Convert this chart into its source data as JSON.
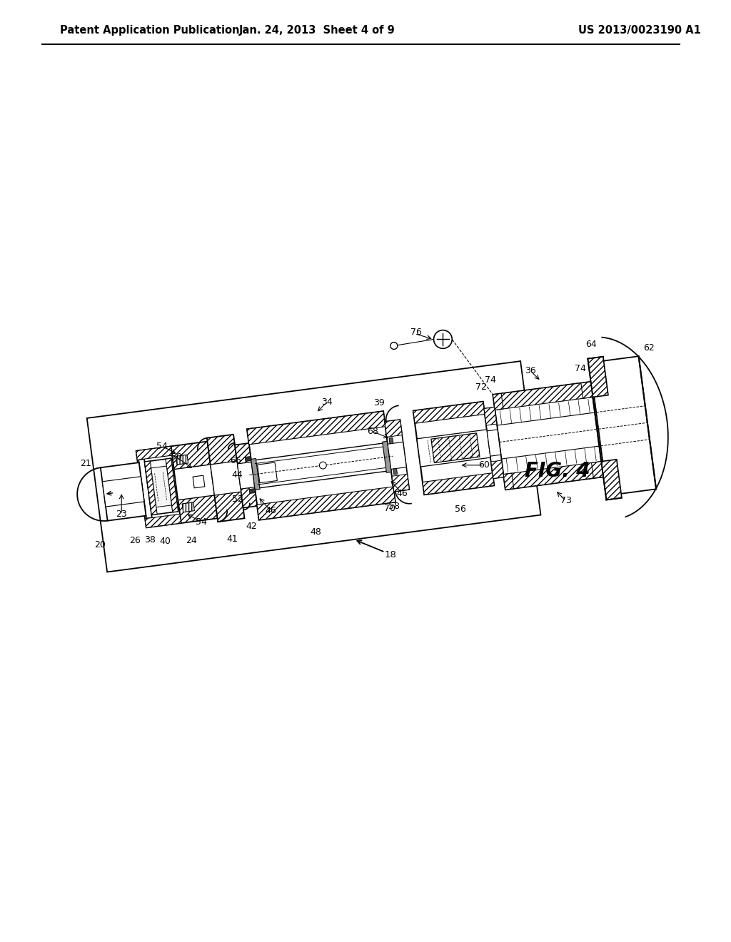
{
  "bg_color": "#ffffff",
  "header_left": "Patent Application Publication",
  "header_center": "Jan. 24, 2013  Sheet 4 of 9",
  "header_right": "US 2013/0023190 A1",
  "fig_label": "FIG. 4",
  "line_color": "#000000"
}
